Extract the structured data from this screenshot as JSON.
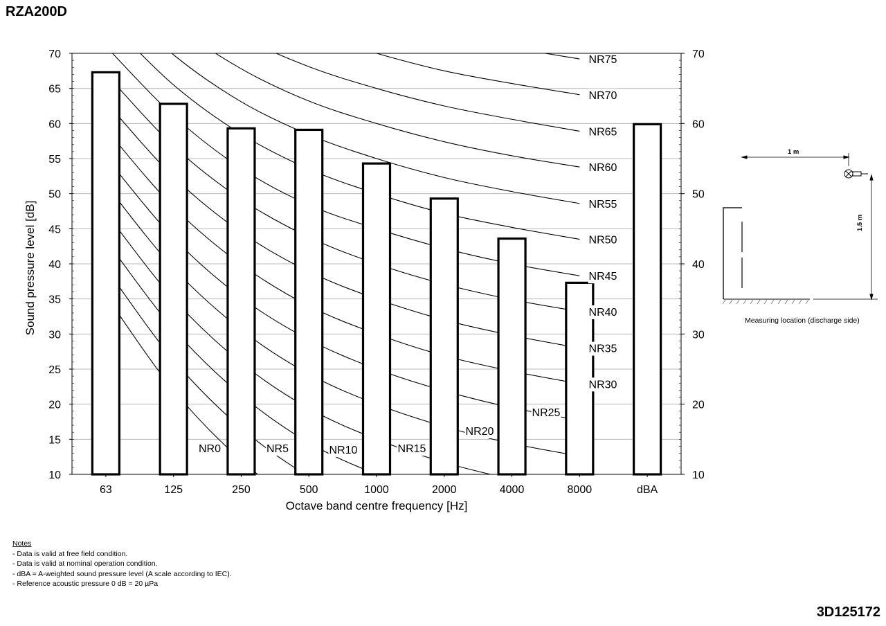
{
  "header": {
    "model": "RZA200D",
    "doc_number": "3D125172"
  },
  "notes": {
    "title": "Notes",
    "items": [
      "Data is valid at free field condition.",
      "Data is valid at nominal operation condition.",
      "dBA = A-weighted sound pressure level (A scale according to IEC).",
      "Reference acoustic pressure 0 dB = 20 µPa"
    ]
  },
  "measuring": {
    "caption": "Measuring location (discharge side)",
    "horizontal_distance": "1 m",
    "vertical_distance": "1.5 m",
    "icon": "microphone-icon"
  },
  "chart_data": {
    "type": "bar",
    "title": "",
    "xlabel": "Octave band centre frequency [Hz]",
    "ylabel": "Sound pressure level [dB]",
    "ylim": [
      10,
      70
    ],
    "yticks": [
      10,
      15,
      20,
      25,
      30,
      35,
      40,
      45,
      50,
      55,
      60,
      65,
      70
    ],
    "right_yticks": [
      10,
      20,
      30,
      40,
      50,
      60,
      70
    ],
    "categories": [
      "63",
      "125",
      "250",
      "500",
      "1000",
      "2000",
      "4000",
      "8000",
      "dBA"
    ],
    "values": [
      67.3,
      62.8,
      59.3,
      59.1,
      54.3,
      49.3,
      43.6,
      37.3,
      59.9
    ],
    "grid": true,
    "nr_curves": [
      {
        "name": "NR0",
        "values": [
          35.5,
          22.0,
          12.0,
          4.8,
          0.0,
          -3.5,
          -6.1,
          -8.0
        ]
      },
      {
        "name": "NR5",
        "values": [
          39.4,
          26.3,
          16.6,
          9.7,
          5.0,
          1.6,
          -1.0,
          -2.8
        ]
      },
      {
        "name": "NR10",
        "values": [
          43.4,
          30.7,
          21.3,
          14.5,
          10.0,
          6.6,
          4.2,
          2.3
        ]
      },
      {
        "name": "NR15",
        "values": [
          47.3,
          35.0,
          25.9,
          19.4,
          15.0,
          11.7,
          9.3,
          7.4
        ]
      },
      {
        "name": "NR20",
        "values": [
          51.3,
          39.4,
          30.6,
          24.3,
          20.0,
          16.8,
          14.4,
          12.6
        ]
      },
      {
        "name": "NR25",
        "values": [
          55.2,
          43.7,
          35.2,
          29.2,
          25.0,
          21.9,
          19.5,
          17.7
        ]
      },
      {
        "name": "NR30",
        "values": [
          59.2,
          48.1,
          39.9,
          34.0,
          30.0,
          26.9,
          24.7,
          22.9
        ]
      },
      {
        "name": "NR35",
        "values": [
          63.1,
          52.4,
          44.5,
          38.9,
          35.0,
          32.0,
          29.8,
          28.0
        ]
      },
      {
        "name": "NR40",
        "values": [
          67.1,
          56.8,
          49.2,
          43.8,
          40.0,
          37.1,
          34.9,
          33.2
        ]
      },
      {
        "name": "NR45",
        "values": [
          71.0,
          61.1,
          53.6,
          48.4,
          45.0,
          42.2,
          40.0,
          38.3
        ]
      },
      {
        "name": "NR50",
        "values": [
          75.0,
          65.5,
          58.5,
          53.5,
          50.0,
          47.2,
          45.2,
          43.5
        ]
      },
      {
        "name": "NR55",
        "values": [
          78.9,
          69.8,
          63.1,
          58.4,
          55.0,
          52.3,
          50.3,
          48.6
        ]
      },
      {
        "name": "NR60",
        "values": [
          82.9,
          74.2,
          67.8,
          63.2,
          60.0,
          57.4,
          55.4,
          53.8
        ]
      },
      {
        "name": "NR65",
        "values": [
          86.8,
          78.5,
          72.4,
          68.1,
          65.0,
          62.5,
          60.6,
          58.9
        ]
      },
      {
        "name": "NR70",
        "values": [
          90.8,
          82.9,
          77.1,
          73.0,
          70.0,
          67.5,
          65.7,
          64.1
        ]
      },
      {
        "name": "NR75",
        "values": [
          94.7,
          87.2,
          81.7,
          77.9,
          75.0,
          72.6,
          70.8,
          69.2
        ]
      }
    ]
  }
}
